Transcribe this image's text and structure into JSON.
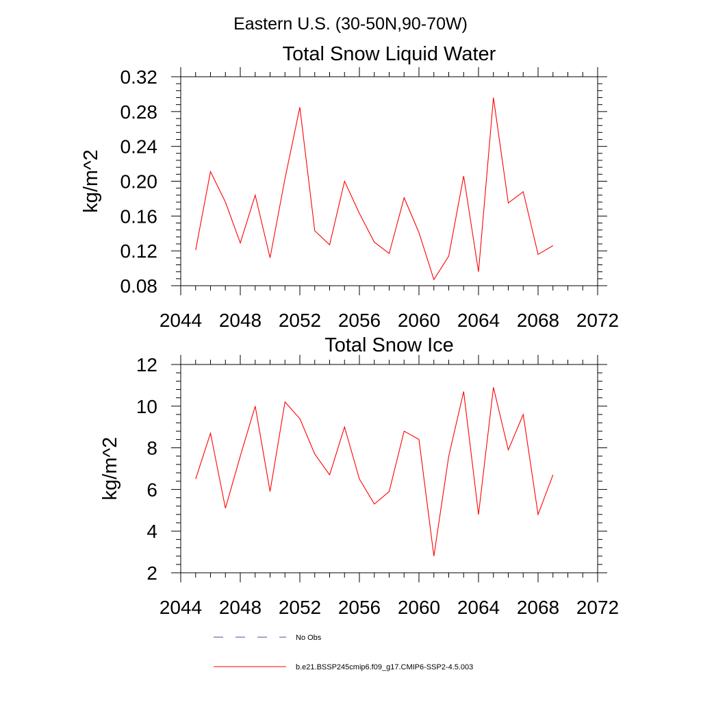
{
  "figure": {
    "suptitle": "Eastern U.S. (30-50N,90-70W)"
  },
  "colors": {
    "model": "#ff0000",
    "obs": "#4a4a9a",
    "axis": "#000000"
  },
  "legend": {
    "placement": "bottom",
    "entries": [
      {
        "label": "No Obs",
        "style": "dashed"
      },
      {
        "label": "b.e21.BSSP245cmip6.f09_g17.CMIP6-SSP2-4.5.003",
        "style": "solid"
      }
    ]
  },
  "chart_data": [
    {
      "type": "line",
      "title": "Total Snow Liquid Water",
      "xlabel": "",
      "ylabel": "kg/m^2",
      "xlim": [
        2044,
        2072
      ],
      "ylim": [
        0.08,
        0.32
      ],
      "xticks": [
        2044,
        2048,
        2052,
        2056,
        2060,
        2064,
        2068,
        2072
      ],
      "xtick_labels": [
        "2044",
        "2048",
        "2052",
        "2056",
        "2060",
        "2064",
        "2068",
        "2072"
      ],
      "yticks": [
        0.08,
        0.12,
        0.16,
        0.2,
        0.24,
        0.28,
        0.32
      ],
      "ytick_labels": [
        "0.08",
        "0.12",
        "0.16",
        "0.20",
        "0.24",
        "0.28",
        "0.32"
      ],
      "grid": false,
      "x": [
        2045,
        2046,
        2047,
        2048,
        2049,
        2050,
        2051,
        2052,
        2053,
        2054,
        2055,
        2056,
        2057,
        2058,
        2059,
        2060,
        2061,
        2062,
        2063,
        2064,
        2065,
        2066,
        2067,
        2068,
        2069
      ],
      "series": [
        {
          "name": "b.e21.BSSP245cmip6.f09_g17.CMIP6-SSP2-4.5.003",
          "values": [
            0.121,
            0.211,
            0.176,
            0.129,
            0.184,
            0.112,
            0.203,
            0.285,
            0.143,
            0.127,
            0.2,
            0.163,
            0.13,
            0.117,
            0.181,
            0.141,
            0.087,
            0.114,
            0.206,
            0.096,
            0.296,
            0.175,
            0.188,
            0.116,
            0.126
          ]
        }
      ]
    },
    {
      "type": "line",
      "title": "Total Snow Ice",
      "xlabel": "",
      "ylabel": "kg/m^2",
      "xlim": [
        2044,
        2072
      ],
      "ylim": [
        2,
        12
      ],
      "xticks": [
        2044,
        2048,
        2052,
        2056,
        2060,
        2064,
        2068,
        2072
      ],
      "xtick_labels": [
        "2044",
        "2048",
        "2052",
        "2056",
        "2060",
        "2064",
        "2068",
        "2072"
      ],
      "yticks": [
        2,
        4,
        6,
        8,
        10,
        12
      ],
      "ytick_labels": [
        "2",
        "4",
        "6",
        "8",
        "10",
        "12"
      ],
      "grid": false,
      "x": [
        2045,
        2046,
        2047,
        2048,
        2049,
        2050,
        2051,
        2052,
        2053,
        2054,
        2055,
        2056,
        2057,
        2058,
        2059,
        2060,
        2061,
        2062,
        2063,
        2064,
        2065,
        2066,
        2067,
        2068,
        2069
      ],
      "series": [
        {
          "name": "b.e21.BSSP245cmip6.f09_g17.CMIP6-SSP2-4.5.003",
          "values": [
            6.5,
            8.7,
            5.1,
            7.6,
            10.0,
            5.9,
            10.2,
            9.4,
            7.7,
            6.7,
            9.0,
            6.5,
            5.3,
            5.9,
            8.8,
            8.4,
            2.8,
            7.6,
            10.7,
            4.8,
            10.9,
            7.9,
            9.6,
            4.8,
            6.7
          ]
        }
      ]
    }
  ]
}
